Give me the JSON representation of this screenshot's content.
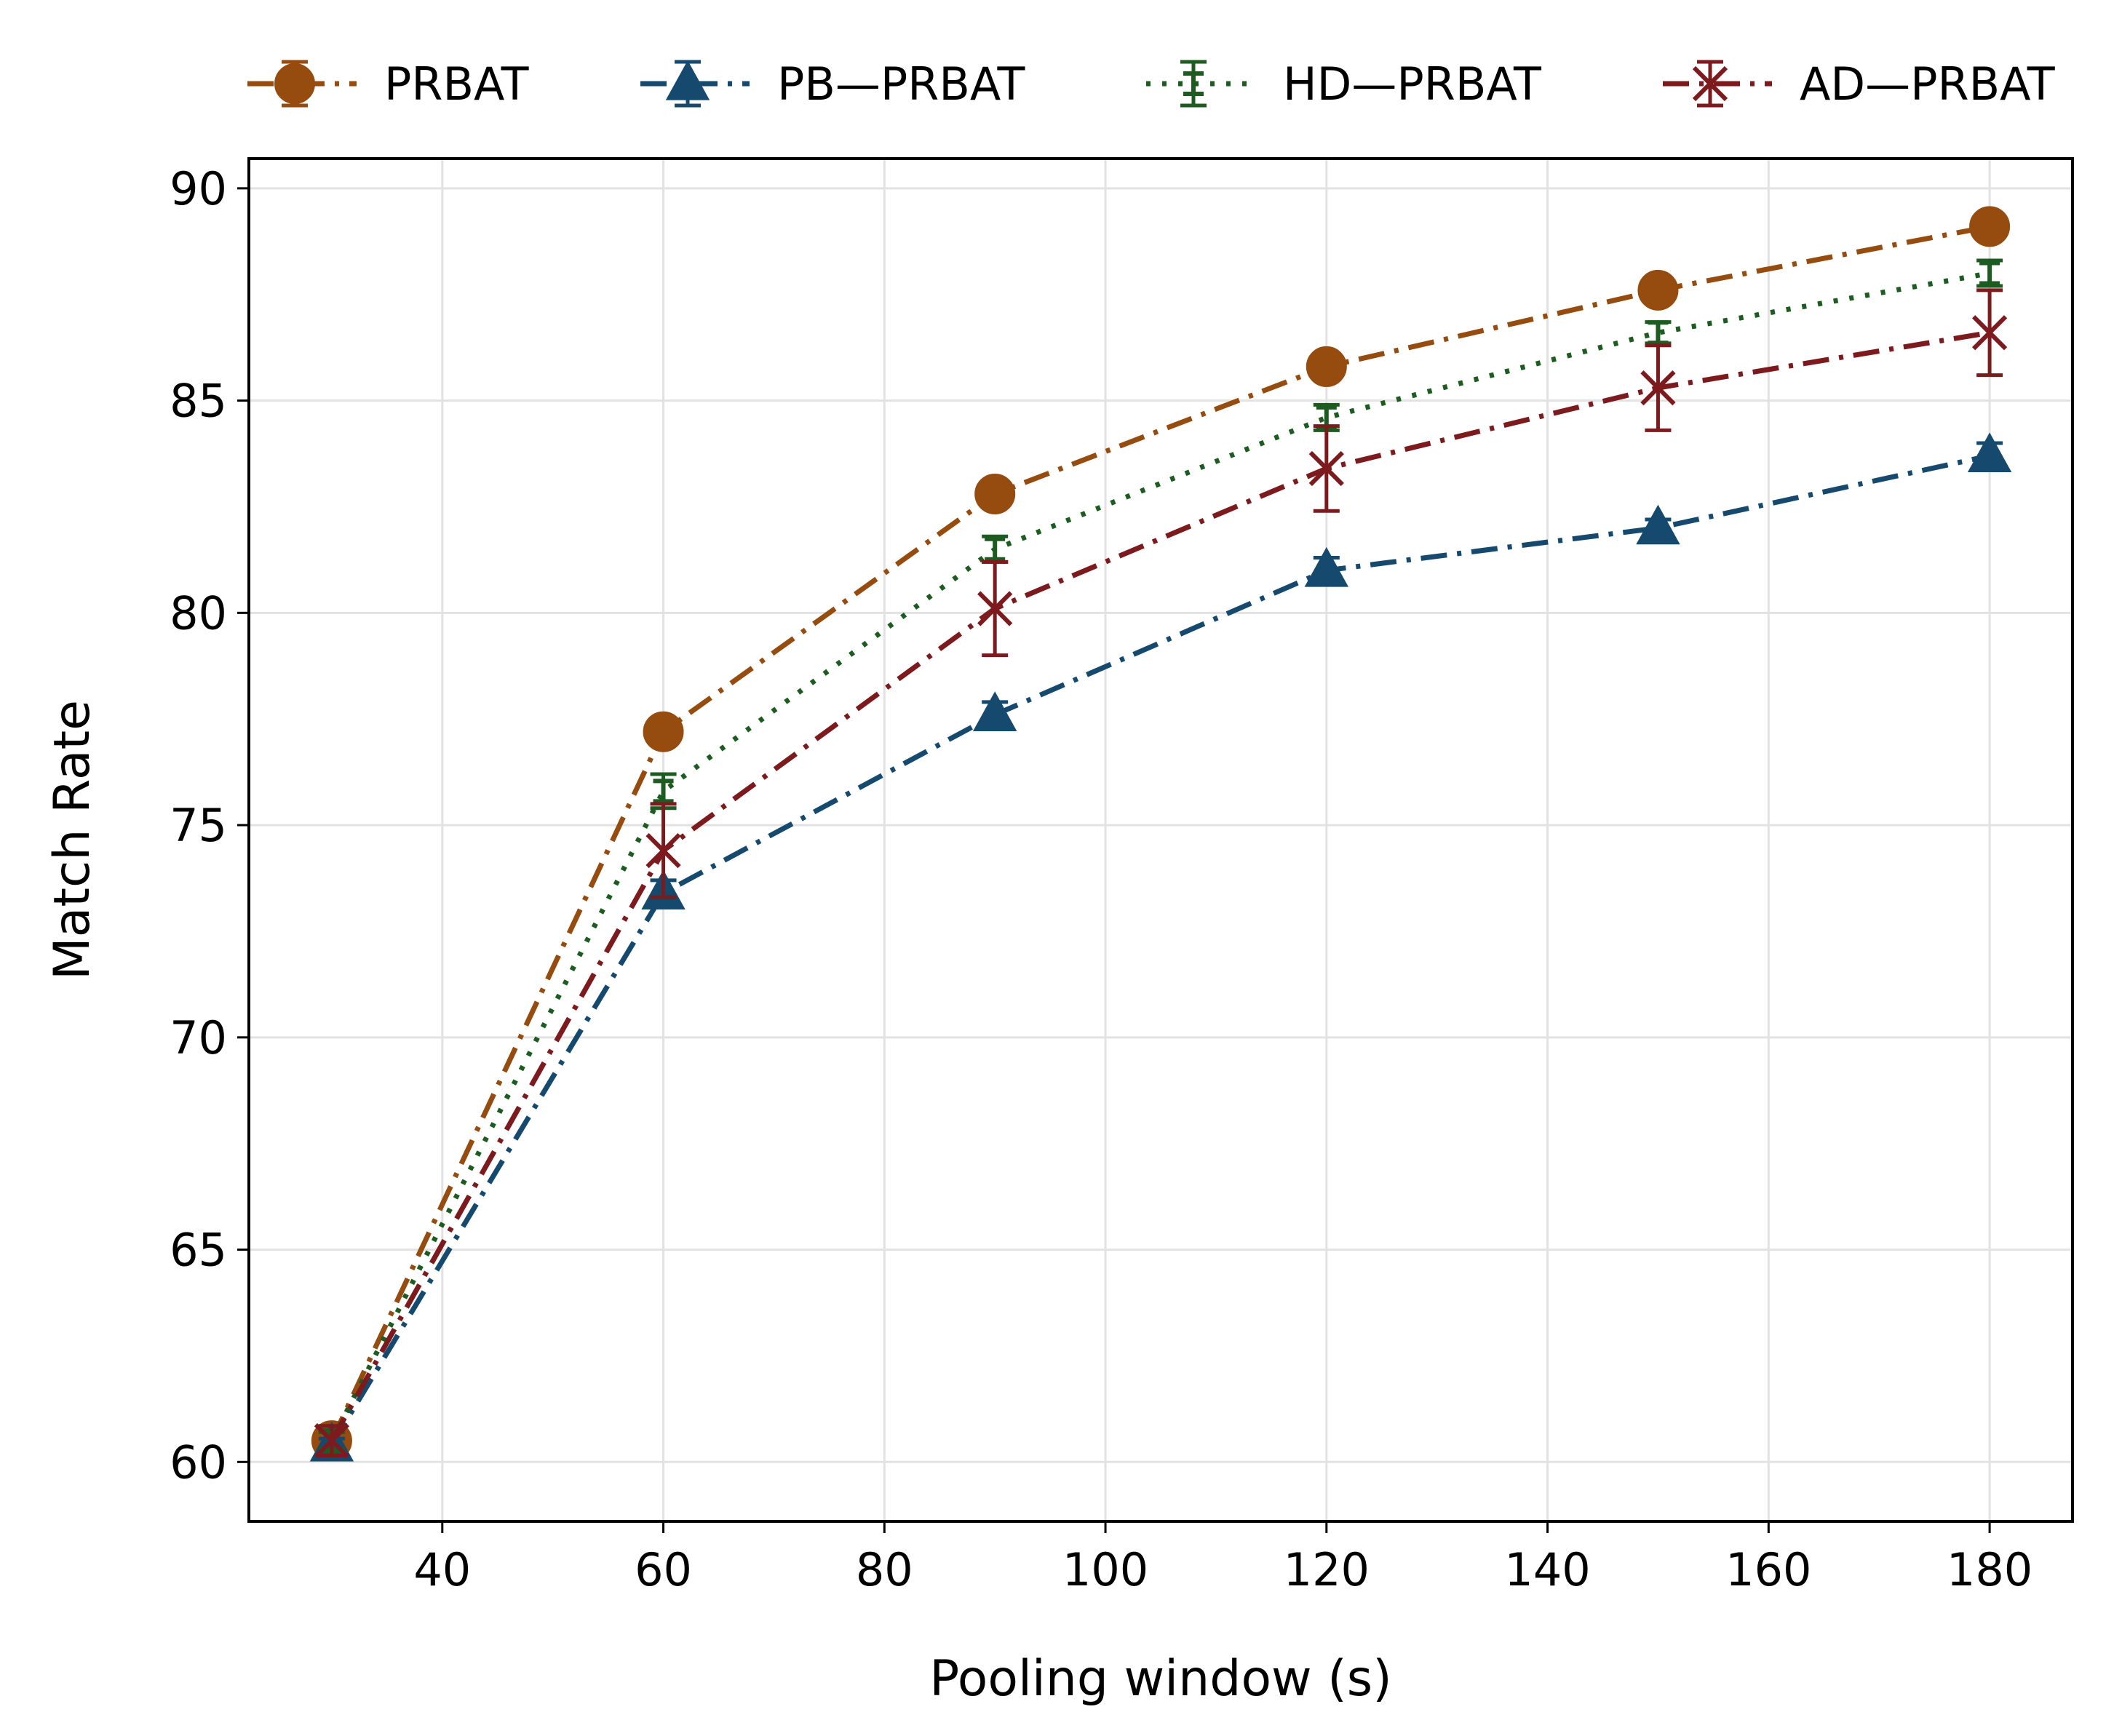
{
  "chart_data": {
    "type": "line",
    "title": "",
    "xlabel": "Pooling window (s)",
    "ylabel": "Match Rate",
    "xlim": [
      22.5,
      187.5
    ],
    "ylim": [
      58.6,
      90.7
    ],
    "x_ticks": [
      40,
      60,
      80,
      100,
      120,
      140,
      160,
      180
    ],
    "y_ticks": [
      60,
      65,
      70,
      75,
      80,
      85,
      90
    ],
    "grid": true,
    "legend_position": "top (above plot, single row)",
    "x": [
      30,
      60,
      90,
      120,
      150,
      180
    ],
    "series": [
      {
        "name": "PRBAT",
        "color": "#964B0F",
        "marker": "circle",
        "line_style": "dash-dot",
        "values": [
          60.5,
          77.2,
          82.8,
          85.8,
          87.6,
          89.1
        ],
        "errors": [
          0.15,
          0.2,
          0.2,
          0.15,
          0.2,
          0.15
        ]
      },
      {
        "name": "PB—PRBAT",
        "color": "#154A6E",
        "marker": "triangle",
        "line_style": "dash-dot",
        "values": [
          60.4,
          73.4,
          77.6,
          81.0,
          82.0,
          83.7
        ],
        "errors": [
          0.15,
          0.3,
          0.3,
          0.3,
          0.2,
          0.3
        ]
      },
      {
        "name": "HD—PRBAT",
        "color": "#1D5C20",
        "marker": "errorbar-cap",
        "line_style": "dotted",
        "values": [
          60.5,
          75.8,
          81.5,
          84.6,
          86.6,
          88.0
        ],
        "errors": [
          0.2,
          0.4,
          0.3,
          0.3,
          0.25,
          0.3
        ]
      },
      {
        "name": "AD—PRBAT",
        "color": "#7D1A1D",
        "marker": "x",
        "line_style": "dash-dot",
        "values": [
          60.5,
          74.4,
          80.1,
          83.4,
          85.3,
          86.6
        ],
        "errors": [
          0.35,
          1.1,
          1.1,
          1.0,
          1.0,
          1.0
        ]
      }
    ]
  }
}
